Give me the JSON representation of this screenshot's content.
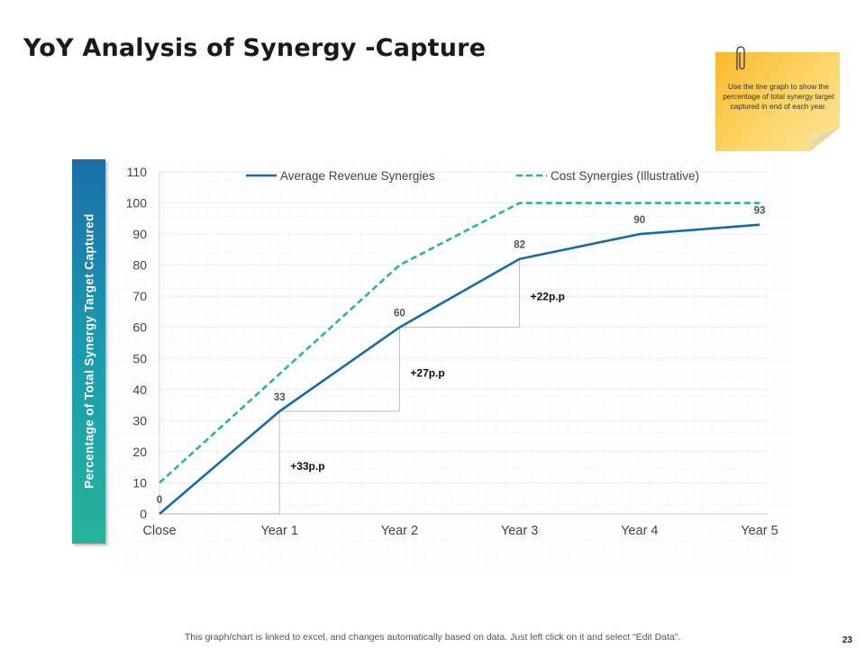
{
  "title": "YoY Analysis of Synergy -Capture",
  "note": "Use the line graph to show the percentage of total synergy target captured in end of each year.",
  "footer": "This graph/chart is linked to excel, and changes automatically based on data. Just left click on it and select “Edit Data”.",
  "page_number": "23",
  "chart_data": {
    "type": "line",
    "categories": [
      "Close",
      "Year 1",
      "Year 2",
      "Year 3",
      "Year 4",
      "Year 5"
    ],
    "series": [
      {
        "name": "Average Revenue Synergies",
        "values": [
          0,
          33,
          60,
          82,
          90,
          93
        ],
        "color": "#1a6aa8",
        "dashed": false,
        "show_labels": true
      },
      {
        "name": "Cost Synergies (Illustrative)",
        "values": [
          10,
          45,
          80,
          100,
          100,
          100
        ],
        "color": "#2bb3a0",
        "dashed": true,
        "show_labels": false
      }
    ],
    "data_labels": [
      "0",
      "33",
      "60",
      "82",
      "90",
      "93"
    ],
    "increments": [
      {
        "label": "+33p.p",
        "from": 0,
        "to": 1
      },
      {
        "label": "+27p.p",
        "from": 1,
        "to": 2
      },
      {
        "label": "+22p.p",
        "from": 2,
        "to": 3
      }
    ],
    "ylabel": "Percentage of Total Synergy Target Captured",
    "xlabel": "",
    "ylim": [
      0,
      110
    ],
    "yticks": [
      0,
      10,
      20,
      30,
      40,
      50,
      60,
      70,
      80,
      90,
      100,
      110
    ],
    "legend_position": "top",
    "grid": true,
    "grid_color": "#e6eef2"
  }
}
